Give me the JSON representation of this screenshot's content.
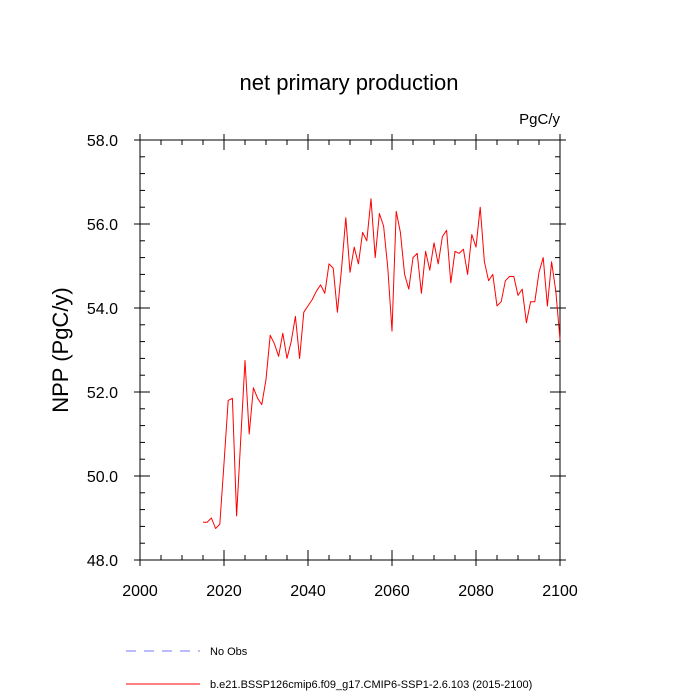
{
  "chart_data": {
    "type": "line",
    "title": "net primary production",
    "units_label": "PgC/y",
    "ylabel": "NPP  (PgC/y)",
    "xlabel": "",
    "xlim": [
      2000,
      2100
    ],
    "ylim": [
      48.0,
      58.0
    ],
    "x_ticks": [
      2000,
      2020,
      2040,
      2060,
      2080,
      2100
    ],
    "x_tick_labels": [
      "2000",
      "2020",
      "2040",
      "2060",
      "2080",
      "2100"
    ],
    "y_ticks": [
      48.0,
      50.0,
      52.0,
      54.0,
      56.0,
      58.0
    ],
    "y_tick_labels": [
      "48.0",
      "50.0",
      "52.0",
      "54.0",
      "56.0",
      "58.0"
    ],
    "grid": false,
    "legend_position": "bottom",
    "series": [
      {
        "name": "b.e21.BSSP126cmip6.f09_g17.CMIP6-SSP1-2.6.103 (2015-2100)",
        "color": "#ff0000",
        "style": "solid",
        "x": [
          2015,
          2016,
          2017,
          2018,
          2019,
          2020,
          2021,
          2022,
          2023,
          2024,
          2025,
          2026,
          2027,
          2028,
          2029,
          2030,
          2031,
          2032,
          2033,
          2034,
          2035,
          2036,
          2037,
          2038,
          2039,
          2040,
          2041,
          2042,
          2043,
          2044,
          2045,
          2046,
          2047,
          2048,
          2049,
          2050,
          2051,
          2052,
          2053,
          2054,
          2055,
          2056,
          2057,
          2058,
          2059,
          2060,
          2061,
          2062,
          2063,
          2064,
          2065,
          2066,
          2067,
          2068,
          2069,
          2070,
          2071,
          2072,
          2073,
          2074,
          2075,
          2076,
          2077,
          2078,
          2079,
          2080,
          2081,
          2082,
          2083,
          2084,
          2085,
          2086,
          2087,
          2088,
          2089,
          2090,
          2091,
          2092,
          2093,
          2094,
          2095,
          2096,
          2097,
          2098,
          2099,
          2100
        ],
        "values": [
          48.9,
          48.9,
          49.0,
          48.75,
          48.85,
          50.3,
          51.8,
          51.85,
          49.05,
          50.9,
          52.75,
          51.0,
          52.1,
          51.85,
          51.7,
          52.3,
          53.35,
          53.15,
          52.85,
          53.4,
          52.8,
          53.2,
          53.8,
          52.8,
          53.9,
          54.05,
          54.2,
          54.4,
          54.55,
          54.35,
          55.05,
          54.95,
          53.9,
          54.95,
          56.15,
          54.85,
          55.45,
          55.05,
          55.8,
          55.6,
          56.6,
          55.2,
          56.25,
          55.95,
          54.95,
          53.45,
          56.3,
          55.8,
          54.8,
          54.45,
          55.2,
          55.3,
          54.35,
          55.35,
          54.9,
          55.55,
          55.05,
          55.7,
          55.85,
          54.6,
          55.35,
          55.3,
          55.4,
          54.8,
          55.75,
          55.45,
          56.4,
          55.1,
          54.65,
          54.8,
          54.05,
          54.15,
          54.65,
          54.75,
          54.75,
          54.3,
          54.45,
          53.65,
          54.15,
          54.15,
          54.85,
          55.2,
          54.05,
          55.1,
          54.4,
          53.25
        ]
      },
      {
        "name": "No Obs",
        "color": "#7777ff",
        "style": "dashed",
        "x": [],
        "values": []
      }
    ]
  }
}
